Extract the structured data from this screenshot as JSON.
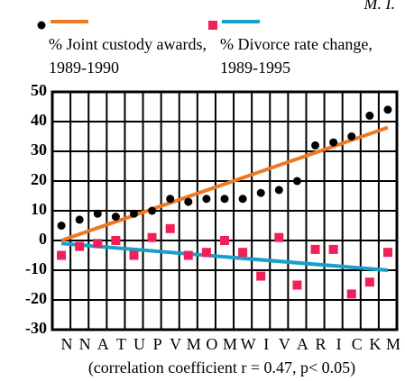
{
  "chart_data": {
    "type": "scatter",
    "annotation": "M. I.",
    "x_label": "(correlation coefficient r = 0.47, p< 0.05)",
    "categories": [
      "N",
      "N",
      "A",
      "T",
      "U",
      "P",
      "V",
      "M",
      "O",
      "M",
      "W",
      "I",
      "V",
      "A",
      "R",
      "I",
      "C",
      "K",
      "M"
    ],
    "series": [
      {
        "name": "% Joint custody awards, 1989-1990",
        "color": "#000000",
        "trend_color": "#f07820",
        "marker": "circle",
        "values": [
          5,
          7,
          9,
          8,
          9,
          10,
          14,
          13,
          14,
          14,
          14,
          16,
          17,
          20,
          32,
          33,
          35,
          42,
          44
        ],
        "trend": [
          0,
          38
        ]
      },
      {
        "name": "% Divorce rate change, 1989-1995",
        "color": "#f0205a",
        "trend_color": "#18a0c8",
        "marker": "square",
        "values": [
          -5,
          -2,
          -1,
          0,
          -5,
          1,
          4,
          -5,
          -4,
          0,
          -4,
          -12,
          1,
          -15,
          -3,
          -3,
          -18,
          -14,
          -4
        ],
        "trend": [
          -1,
          -10
        ]
      }
    ],
    "ylim": [
      -30,
      50
    ],
    "yticks": [
      -30,
      -20,
      -10,
      0,
      10,
      20,
      30,
      40,
      50
    ],
    "grid": true
  }
}
